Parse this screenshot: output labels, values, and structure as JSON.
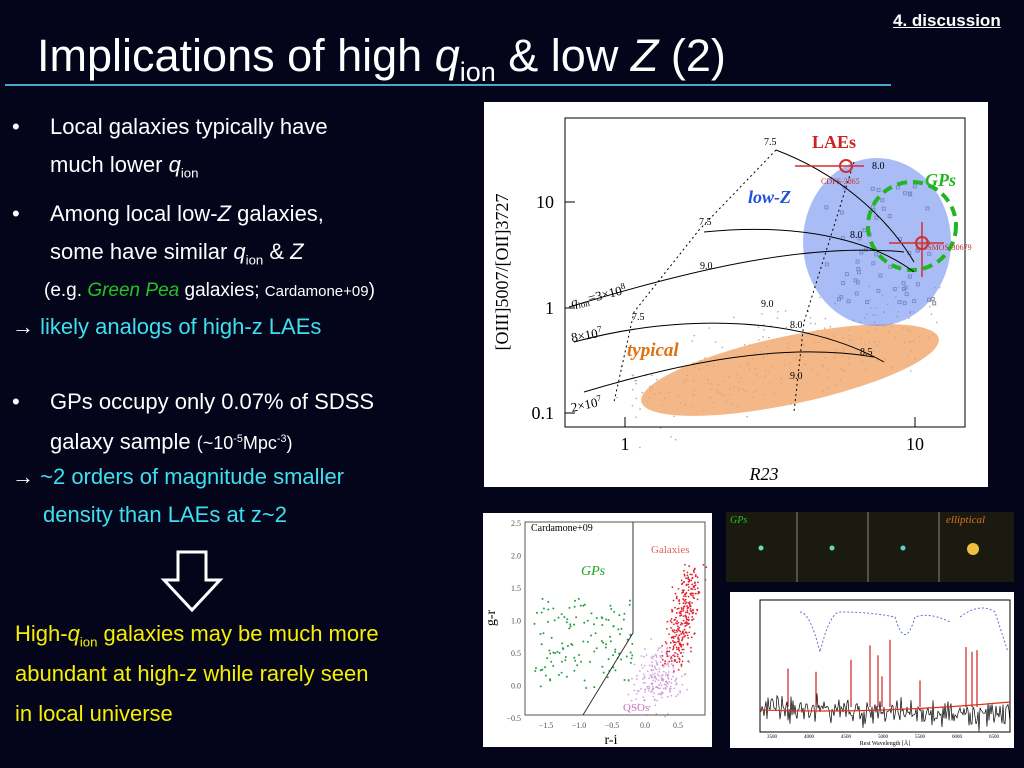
{
  "header": {
    "tag": "4. discussion",
    "title": [
      "Implications of high ",
      "q",
      "ion",
      " & low ",
      "Z",
      " (2)"
    ]
  },
  "body": {
    "b1": [
      "•",
      "Local galaxies typically have",
      "much lower ",
      "q",
      "ion"
    ],
    "b2": [
      "•",
      "Among local low-",
      "Z",
      " galaxies,",
      "some have similar ",
      "q",
      "ion",
      " & ",
      "Z",
      "(e.g. ",
      "Green Pea",
      " galaxies; ",
      "Cardamone+09",
      ")"
    ],
    "b2_arrow": [
      "→ ",
      "likely analogs of high-z LAEs"
    ],
    "b3": [
      "•",
      "GPs occupy only 0.07% of SDSS",
      "galaxy sample ",
      "(~10",
      "-5",
      "Mpc",
      "-3",
      ")"
    ],
    "b3_arrow": [
      "→ ",
      "~2 orders of magnitude smaller",
      "density than LAEs at z~2"
    ],
    "conclusion": [
      "High-",
      "q",
      "ion",
      " galaxies may be much more",
      "abundant at high-z while rarely seen",
      "in local universe"
    ]
  },
  "figure_main": {
    "labels": [
      "LAEs",
      "GPs",
      "low-Z",
      "typical",
      "CDFS-3865",
      "COSMOS-30679"
    ],
    "grid_labels": [
      "7.5",
      "8.0",
      "8.5",
      "9.0"
    ],
    "q_labels": [
      "q",
      "ion",
      "=3×10",
      "8",
      "8×10",
      "7",
      "2×10",
      "7"
    ],
    "xticks": [
      "1",
      "10"
    ],
    "yticks": [
      "10",
      "1",
      "0.1"
    ],
    "xlabel": "R23",
    "ylabel": "[OIII]5007/[OII]3727"
  },
  "figure_color": {
    "credit": "Cardamone+09",
    "labels": [
      "GPs",
      "Galaxies",
      "QSOs"
    ],
    "ylabel": "g-r",
    "xlabel": "r-i",
    "yticks": [
      "2.5",
      "2.0",
      "1.5",
      "1.0",
      "0.5",
      "0.0",
      "−0.5"
    ],
    "xticks": [
      "−1.5",
      "−1.0",
      "−0.5",
      "0.0",
      "0.5"
    ]
  },
  "figure_images": {
    "labels": [
      "GPs",
      "elliptical"
    ]
  },
  "figure_spectrum": {
    "xlabel": "Rest Wavelength [Å]",
    "xticks": [
      "3500",
      "4000",
      "4500",
      "5000",
      "5500",
      "6000",
      "6500"
    ]
  }
}
